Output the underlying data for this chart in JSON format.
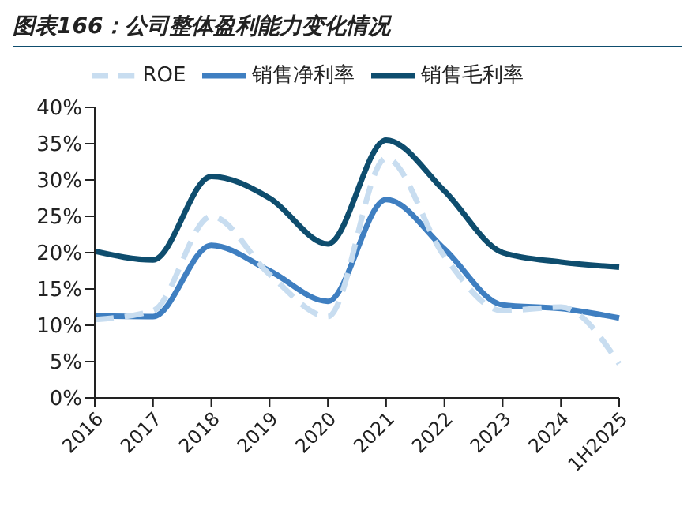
{
  "chart_data": {
    "type": "line",
    "title": "图表166：公司整体盈利能力变化情况",
    "categories": [
      "2016",
      "2017",
      "2018",
      "2019",
      "2020",
      "2021",
      "2022",
      "2023",
      "2024",
      "1H2025"
    ],
    "series": [
      {
        "name": "销售毛利率",
        "color": "#0e4d6e",
        "values": [
          20.2,
          19.0,
          30.5,
          27.5,
          21.2,
          35.5,
          28.5,
          20.0,
          18.7,
          18.0
        ]
      },
      {
        "name": "销售净利率",
        "color": "#3f7fc1",
        "values": [
          11.3,
          11.2,
          21.0,
          17.5,
          13.3,
          27.3,
          20.5,
          12.8,
          12.3,
          11.0
        ]
      },
      {
        "name": "ROE",
        "color": "#c8ddf0",
        "line_style": "dashed",
        "values": [
          10.8,
          12.0,
          25.0,
          17.0,
          11.2,
          33.0,
          19.5,
          12.0,
          12.5,
          4.7
        ]
      }
    ],
    "ylim": [
      0,
      40
    ],
    "yticks": [
      {
        "value": 0,
        "label": "0%"
      },
      {
        "value": 5,
        "label": "5%"
      },
      {
        "value": 10,
        "label": "10%"
      },
      {
        "value": 15,
        "label": "15%"
      },
      {
        "value": 20,
        "label": "20%"
      },
      {
        "value": 25,
        "label": "25%"
      },
      {
        "value": 30,
        "label": "30%"
      },
      {
        "value": 35,
        "label": "35%"
      },
      {
        "value": 40,
        "label": "40%"
      }
    ],
    "legend": "top",
    "grid": false,
    "marker": "none",
    "line_style": "solid"
  }
}
